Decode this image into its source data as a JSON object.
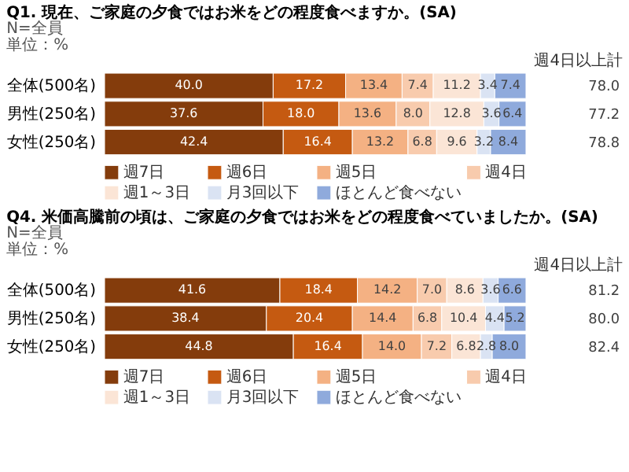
{
  "chart_data": [
    {
      "type": "bar",
      "orientation": "horizontal",
      "stacked": true,
      "title": "Q1. 現在、ご家庭の夕食ではお米をどの程度食べますか。(SA)",
      "annotations": [
        "N=全員",
        "単位：%",
        "週4日以上計",
        "78.0",
        "77.2",
        "78.8"
      ],
      "categories": [
        "全体(500名)",
        "男性(250名)",
        "女性(250名)"
      ],
      "xlim": [
        0,
        100
      ],
      "tick_labels": "y",
      "legend": "bottom",
      "series": [
        {
          "name": "週7日",
          "color": "#843c0c",
          "values": [
            40.0,
            37.6,
            42.4
          ],
          "value_labels": [
            "40.0",
            "37.6",
            "42.4"
          ]
        },
        {
          "name": "週6日",
          "color": "#c55a11",
          "values": [
            17.2,
            18.0,
            16.4
          ],
          "value_labels": [
            "17.2",
            "18.0",
            "16.4"
          ]
        },
        {
          "name": "週5日",
          "color": "#f4b183",
          "values": [
            13.4,
            13.6,
            13.2
          ],
          "value_labels": [
            "13.4",
            "13.6",
            "13.2"
          ]
        },
        {
          "name": "週4日",
          "color": "#f8cbad",
          "values": [
            7.4,
            8.0,
            6.8
          ],
          "value_labels": [
            "7.4",
            "8.0",
            "6.8"
          ]
        },
        {
          "name": "週1～3日",
          "color": "#fbe5d6",
          "values": [
            11.2,
            12.8,
            9.6
          ],
          "value_labels": [
            "11.2",
            "12.8",
            "9.6"
          ]
        },
        {
          "name": "月3回以下",
          "color": "#dae3f3",
          "values": [
            3.4,
            3.6,
            3.2
          ],
          "value_labels": [
            "3.4",
            "3.6",
            "3.2"
          ]
        },
        {
          "name": "ほとんど食べない",
          "color": "#8faadc",
          "values": [
            7.4,
            6.4,
            8.4
          ],
          "value_labels": [
            "7.4",
            "6.4",
            "8.4"
          ]
        }
      ]
    },
    {
      "type": "bar",
      "orientation": "horizontal",
      "stacked": true,
      "title": "Q4. 米価高騰前の頃は、ご家庭の夕食ではお米をどの程度食べていましたか。(SA)",
      "annotations": [
        "N=全員",
        "単位：%",
        "週4日以上計",
        "81.2",
        "80.0",
        "82.4"
      ],
      "categories": [
        "全体(500名)",
        "男性(250名)",
        "女性(250名)"
      ],
      "xlim": [
        0,
        100
      ],
      "tick_labels": "y",
      "legend": "bottom",
      "series": [
        {
          "name": "週7日",
          "color": "#843c0c",
          "values": [
            41.6,
            38.4,
            44.8
          ],
          "value_labels": [
            "41.6",
            "38.4",
            "44.8"
          ]
        },
        {
          "name": "週6日",
          "color": "#c55a11",
          "values": [
            18.4,
            20.4,
            16.4
          ],
          "value_labels": [
            "18.4",
            "20.4",
            "16.4"
          ]
        },
        {
          "name": "週5日",
          "color": "#f4b183",
          "values": [
            14.2,
            14.4,
            14.0
          ],
          "value_labels": [
            "14.2",
            "14.4",
            "14.0"
          ]
        },
        {
          "name": "週4日",
          "color": "#f8cbad",
          "values": [
            7.0,
            6.8,
            7.2
          ],
          "value_labels": [
            "7.0",
            "6.8",
            "7.2"
          ]
        },
        {
          "name": "週1～3日",
          "color": "#fbe5d6",
          "values": [
            8.6,
            10.4,
            6.8
          ],
          "value_labels": [
            "8.6",
            "10.4",
            "6.8"
          ]
        },
        {
          "name": "月3回以下",
          "color": "#dae3f3",
          "values": [
            3.6,
            4.4,
            2.8
          ],
          "value_labels": [
            "3.6",
            "4.4",
            "2.8"
          ]
        },
        {
          "name": "ほとんど食べない",
          "color": "#8faadc",
          "values": [
            6.6,
            5.2,
            8.0
          ],
          "value_labels": [
            "6.6",
            "5.2",
            "8.0"
          ]
        }
      ]
    }
  ]
}
